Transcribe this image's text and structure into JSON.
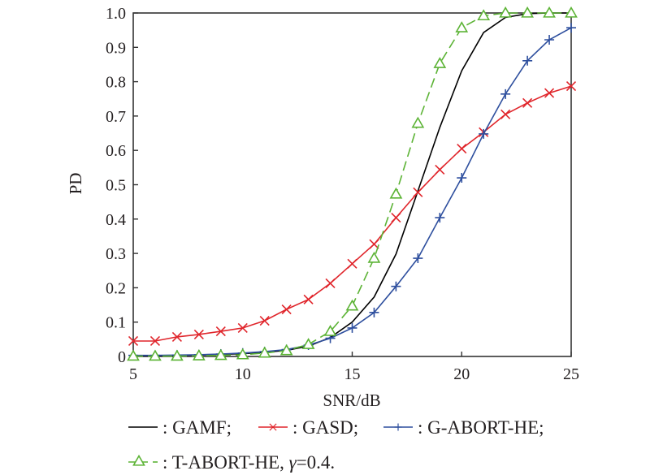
{
  "chart_data": {
    "type": "line",
    "title": "",
    "xlabel": "SNR/dB",
    "ylabel": "PD",
    "xlim": [
      5,
      25
    ],
    "ylim": [
      0,
      1.0
    ],
    "grid": false,
    "x_ticks": [
      "5",
      "10",
      "15",
      "20",
      "25"
    ],
    "x_tick_values": [
      5,
      10,
      15,
      20,
      25
    ],
    "y_ticks": [
      "0",
      "0.1",
      "0.2",
      "0.3",
      "0.4",
      "0.5",
      "0.6",
      "0.7",
      "0.8",
      "0.9",
      "1.0"
    ],
    "y_tick_values": [
      0,
      0.1,
      0.2,
      0.3,
      0.4,
      0.5,
      0.6,
      0.7,
      0.8,
      0.9,
      1.0
    ],
    "x": [
      5,
      6,
      7,
      8,
      9,
      10,
      11,
      12,
      13,
      14,
      15,
      16,
      17,
      18,
      19,
      20,
      21,
      22,
      23,
      24,
      25
    ],
    "series": [
      {
        "name": "GAMF",
        "legend_label": ": GAMF;",
        "color": "#000000",
        "marker": "none",
        "dash": "solid",
        "values": [
          0.002,
          0.002,
          0.003,
          0.004,
          0.006,
          0.008,
          0.012,
          0.018,
          0.03,
          0.055,
          0.1,
          0.173,
          0.298,
          0.482,
          0.667,
          0.832,
          0.943,
          0.987,
          0.998,
          1.0,
          1.0
        ]
      },
      {
        "name": "GASD",
        "legend_label": ": GASD;",
        "color": "#e0252b",
        "marker": "x",
        "dash": "solid",
        "values": [
          0.045,
          0.045,
          0.057,
          0.064,
          0.073,
          0.083,
          0.104,
          0.137,
          0.166,
          0.213,
          0.27,
          0.327,
          0.404,
          0.478,
          0.544,
          0.605,
          0.653,
          0.705,
          0.738,
          0.767,
          0.787
        ]
      },
      {
        "name": "G-ABORT-HE",
        "legend_label": ": G-ABORT-HE;",
        "color": "#2e4f9e",
        "marker": "+",
        "dash": "solid",
        "values": [
          0.003,
          0.003,
          0.004,
          0.005,
          0.007,
          0.01,
          0.014,
          0.02,
          0.033,
          0.053,
          0.083,
          0.128,
          0.204,
          0.286,
          0.404,
          0.52,
          0.648,
          0.764,
          0.861,
          0.922,
          0.957
        ]
      },
      {
        "name": "T-ABORT-HE",
        "legend_label": ": T-ABORT-HE, ",
        "legend_gamma": "γ",
        "legend_suffix": "=0.4.",
        "color": "#5cb335",
        "marker": "triangle",
        "dash": "dashed",
        "values": [
          0.001,
          0.001,
          0.001,
          0.002,
          0.003,
          0.005,
          0.01,
          0.017,
          0.035,
          0.073,
          0.147,
          0.286,
          0.473,
          0.679,
          0.853,
          0.957,
          0.992,
          1.0,
          1.0,
          1.0,
          1.0
        ]
      }
    ],
    "legend_position": "bottom"
  }
}
